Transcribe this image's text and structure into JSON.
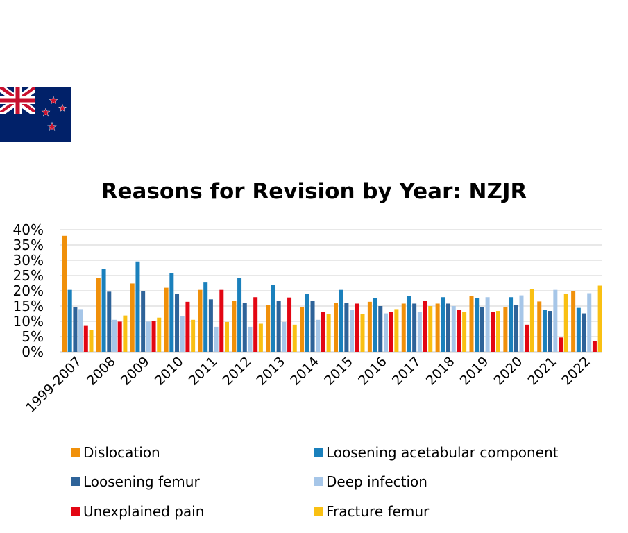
{
  "flag": {
    "icon": "new-zealand-flag-icon",
    "colors": {
      "blue": "#012169",
      "red": "#C8102E",
      "white": "#FFFFFF"
    }
  },
  "chart_data": {
    "type": "bar",
    "title": "Reasons for Revision by Year: NZJR",
    "xlabel": "",
    "ylabel": "",
    "ylim": [
      0,
      40
    ],
    "yticks": [
      "0%",
      "5%",
      "10%",
      "15%",
      "20%",
      "25%",
      "30%",
      "35%",
      "40%"
    ],
    "ytick_values": [
      0,
      5,
      10,
      15,
      20,
      25,
      30,
      35,
      40
    ],
    "grid": true,
    "legend_position": "bottom",
    "categories": [
      "1999-2007",
      "2008",
      "2009",
      "2010",
      "2011",
      "2012",
      "2013",
      "2014",
      "2015",
      "2016",
      "2017",
      "2018",
      "2019",
      "2020",
      "2021",
      "2022"
    ],
    "series": [
      {
        "name": "Dislocation",
        "color": "#F0900A",
        "values": [
          38.0,
          24.1,
          22.4,
          21.0,
          20.3,
          16.8,
          15.4,
          14.7,
          16.1,
          16.4,
          15.8,
          15.8,
          18.2,
          14.7,
          16.5,
          19.8
        ]
      },
      {
        "name": "Loosening acetabular component",
        "color": "#1A80BC",
        "values": [
          20.3,
          27.2,
          29.6,
          25.8,
          22.7,
          24.1,
          22.0,
          18.9,
          20.3,
          17.6,
          18.2,
          17.9,
          17.6,
          17.9,
          13.7,
          14.4
        ]
      },
      {
        "name": "Loosening femur",
        "color": "#2E6399",
        "values": [
          14.7,
          19.7,
          19.9,
          18.9,
          17.2,
          16.1,
          16.8,
          16.8,
          16.1,
          15.0,
          15.8,
          15.8,
          14.7,
          15.4,
          13.4,
          12.6
        ]
      },
      {
        "name": "Deep infection",
        "color": "#A6C6E8",
        "values": [
          14.0,
          10.5,
          9.9,
          11.6,
          8.2,
          8.2,
          9.8,
          10.5,
          13.7,
          12.6,
          13.0,
          15.0,
          17.9,
          18.5,
          20.3,
          19.2
        ]
      },
      {
        "name": "Unexplained pain",
        "color": "#E30613",
        "values": [
          8.5,
          9.9,
          10.1,
          16.4,
          20.3,
          17.9,
          17.8,
          13.0,
          15.8,
          13.0,
          16.8,
          13.7,
          13.0,
          8.9,
          4.7,
          3.6
        ]
      },
      {
        "name": "Fracture femur",
        "color": "#F9C013",
        "values": [
          7.1,
          11.9,
          11.2,
          10.5,
          9.8,
          9.2,
          8.9,
          12.3,
          12.3,
          14.0,
          15.0,
          13.0,
          13.4,
          20.6,
          18.9,
          21.7
        ]
      }
    ],
    "gridline_color": "#D9D9D9"
  }
}
